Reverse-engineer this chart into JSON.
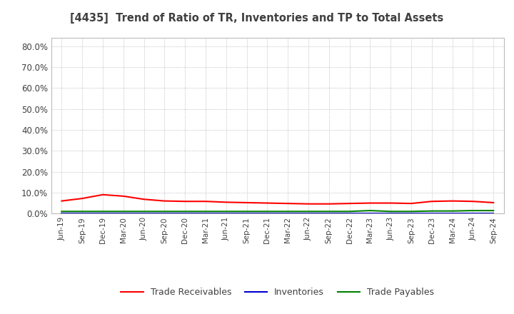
{
  "title": "[4435]  Trend of Ratio of TR, Inventories and TP to Total Assets",
  "x_labels": [
    "Jun-19",
    "Sep-19",
    "Dec-19",
    "Mar-20",
    "Jun-20",
    "Sep-20",
    "Dec-20",
    "Mar-21",
    "Jun-21",
    "Sep-21",
    "Dec-21",
    "Mar-22",
    "Jun-22",
    "Sep-22",
    "Dec-22",
    "Mar-23",
    "Jun-23",
    "Sep-23",
    "Dec-23",
    "Mar-24",
    "Jun-24",
    "Sep-24"
  ],
  "trade_receivables": [
    0.06,
    0.072,
    0.09,
    0.083,
    0.068,
    0.06,
    0.058,
    0.058,
    0.054,
    0.052,
    0.05,
    0.048,
    0.046,
    0.046,
    0.048,
    0.05,
    0.05,
    0.048,
    0.058,
    0.06,
    0.058,
    0.052
  ],
  "inventories": [
    0.001,
    0.001,
    0.001,
    0.001,
    0.001,
    0.001,
    0.001,
    0.001,
    0.001,
    0.001,
    0.001,
    0.001,
    0.001,
    0.001,
    0.001,
    0.001,
    0.001,
    0.001,
    0.001,
    0.001,
    0.001,
    0.001
  ],
  "trade_payables": [
    0.01,
    0.01,
    0.01,
    0.01,
    0.01,
    0.01,
    0.01,
    0.01,
    0.01,
    0.01,
    0.01,
    0.01,
    0.01,
    0.01,
    0.01,
    0.014,
    0.01,
    0.01,
    0.012,
    0.012,
    0.014,
    0.014
  ],
  "tr_color": "#ff0000",
  "inv_color": "#0000cc",
  "tp_color": "#008000",
  "ylim_max": 0.84,
  "yticks": [
    0.0,
    0.1,
    0.2,
    0.3,
    0.4,
    0.5,
    0.6,
    0.7,
    0.8
  ],
  "legend_labels": [
    "Trade Receivables",
    "Inventories",
    "Trade Payables"
  ],
  "background_color": "#ffffff",
  "grid_color": "#999999",
  "title_color": "#404040",
  "tick_color": "#404040"
}
